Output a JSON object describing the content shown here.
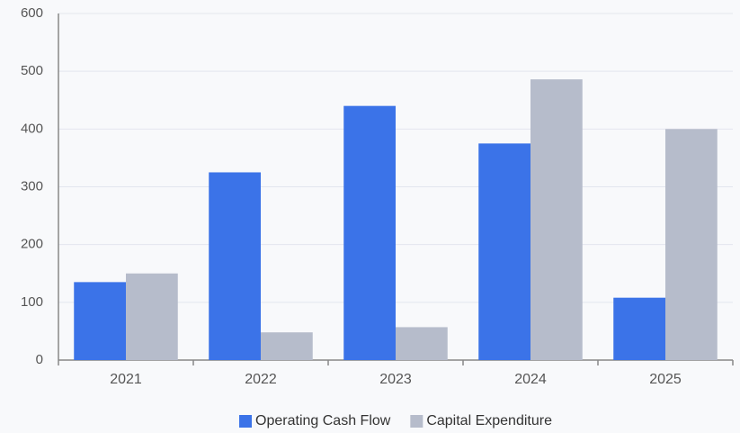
{
  "chart_data": {
    "type": "bar",
    "categories": [
      "2021",
      "2022",
      "2023",
      "2024",
      "2025"
    ],
    "series": [
      {
        "name": "Operating Cash Flow",
        "color": "#3b73e8",
        "values": [
          135,
          325,
          440,
          375,
          108
        ]
      },
      {
        "name": "Capital Expenditure",
        "color": "#b6bccb",
        "values": [
          150,
          48,
          57,
          486,
          400
        ]
      }
    ],
    "ylim": [
      0,
      600
    ],
    "yticks": [
      0,
      100,
      200,
      300,
      400,
      500,
      600
    ],
    "grid": true,
    "legend": "bottom"
  }
}
